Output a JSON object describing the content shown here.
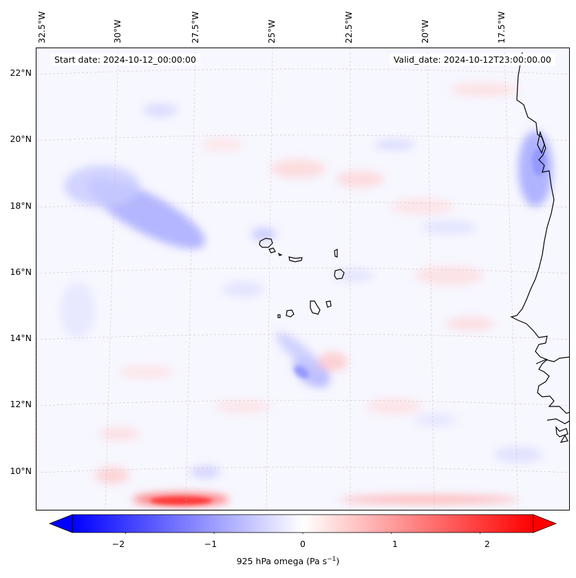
{
  "map": {
    "start_date_text": "Start date: 2024-10-12_00:00:00",
    "valid_date_text": "Valid_date: 2024-10-12T23:00:00.00",
    "lon_labels": [
      "32.5°W",
      "30°W",
      "27.5°W",
      "25°W",
      "22.5°W",
      "20°W",
      "17.5°W"
    ],
    "lat_labels": [
      "22°N",
      "20°N",
      "18°N",
      "16°N",
      "14°N",
      "12°N",
      "10°N"
    ],
    "field": "925 hPa omega",
    "colors": {
      "negative": "#0000ff",
      "zero": "#ffffff",
      "positive": "#ff0000",
      "coastline": "#000000",
      "gridline": "#c8b4b4"
    }
  },
  "colorbar": {
    "label_main": "925 hPa omega (Pa s",
    "label_sup": "−1",
    "label_end": ")",
    "min": -2.6,
    "max": 2.6,
    "ticks": [
      "−2",
      "−1",
      "0",
      "1",
      "2"
    ],
    "tick_values": [
      -2,
      -1,
      0,
      1,
      2
    ]
  }
}
